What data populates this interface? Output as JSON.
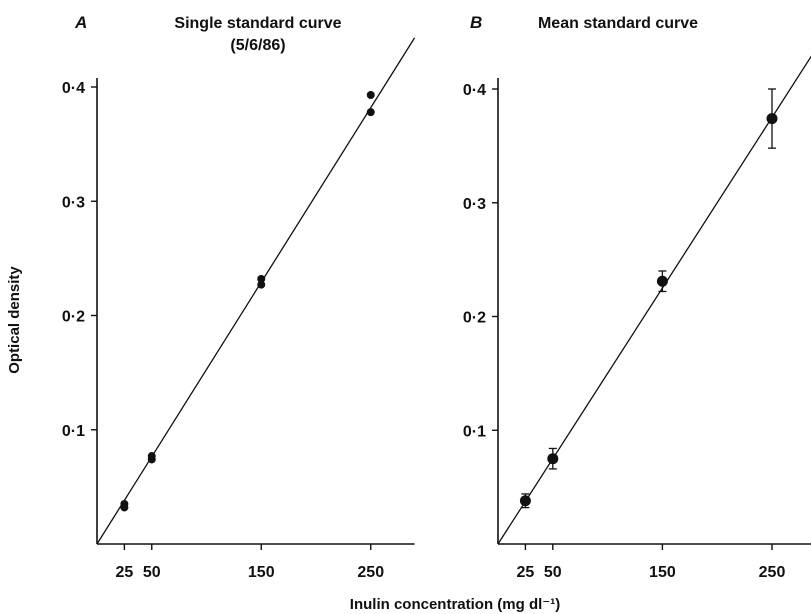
{
  "chart_data": [
    {
      "type": "scatter",
      "panel": "A",
      "title": "Single standard curve",
      "subtitle": "(5/6/86)",
      "xlabel": "Inulin concentration (mg dl⁻¹)",
      "ylabel": "Optical density",
      "xlim": [
        0,
        290
      ],
      "ylim": [
        0,
        0.4
      ],
      "xticks": [
        25,
        50,
        150,
        250
      ],
      "xtick_labels": [
        "25",
        "50",
        "150",
        "250"
      ],
      "yticks": [
        0.1,
        0.2,
        0.3,
        0.4
      ],
      "ytick_labels": [
        "0·1",
        "0·2",
        "0·3",
        "0·4"
      ],
      "grid": false,
      "series": [
        {
          "points": [
            {
              "x": 25,
              "y": 0.032
            },
            {
              "x": 25,
              "y": 0.035
            },
            {
              "x": 50,
              "y": 0.074
            },
            {
              "x": 50,
              "y": 0.077
            },
            {
              "x": 150,
              "y": 0.227
            },
            {
              "x": 150,
              "y": 0.232
            },
            {
              "x": 250,
              "y": 0.378
            },
            {
              "x": 250,
              "y": 0.393
            }
          ]
        }
      ],
      "fit_line": {
        "x": [
          0,
          290
        ],
        "y": [
          0.0,
          0.443
        ]
      }
    },
    {
      "type": "scatter",
      "panel": "B",
      "title": "Mean standard curve",
      "xlabel": "Inulin concentration (mg dl⁻¹)",
      "ylabel": "",
      "xlim": [
        0,
        290
      ],
      "ylim": [
        0,
        0.4
      ],
      "xticks": [
        25,
        50,
        150,
        250
      ],
      "xtick_labels": [
        "25",
        "50",
        "150",
        "250"
      ],
      "yticks": [
        0.1,
        0.2,
        0.3,
        0.4
      ],
      "ytick_labels": [
        "0·1",
        "0·2",
        "0·3",
        "0·4"
      ],
      "grid": false,
      "series": [
        {
          "points": [
            {
              "x": 25,
              "y": 0.038,
              "err": 0.006
            },
            {
              "x": 50,
              "y": 0.075,
              "err": 0.009
            },
            {
              "x": 150,
              "y": 0.231,
              "err": 0.009
            },
            {
              "x": 250,
              "y": 0.374,
              "err": 0.026
            }
          ]
        }
      ],
      "fit_line": {
        "x": [
          0,
          290
        ],
        "y": [
          0.0,
          0.435
        ]
      }
    }
  ]
}
